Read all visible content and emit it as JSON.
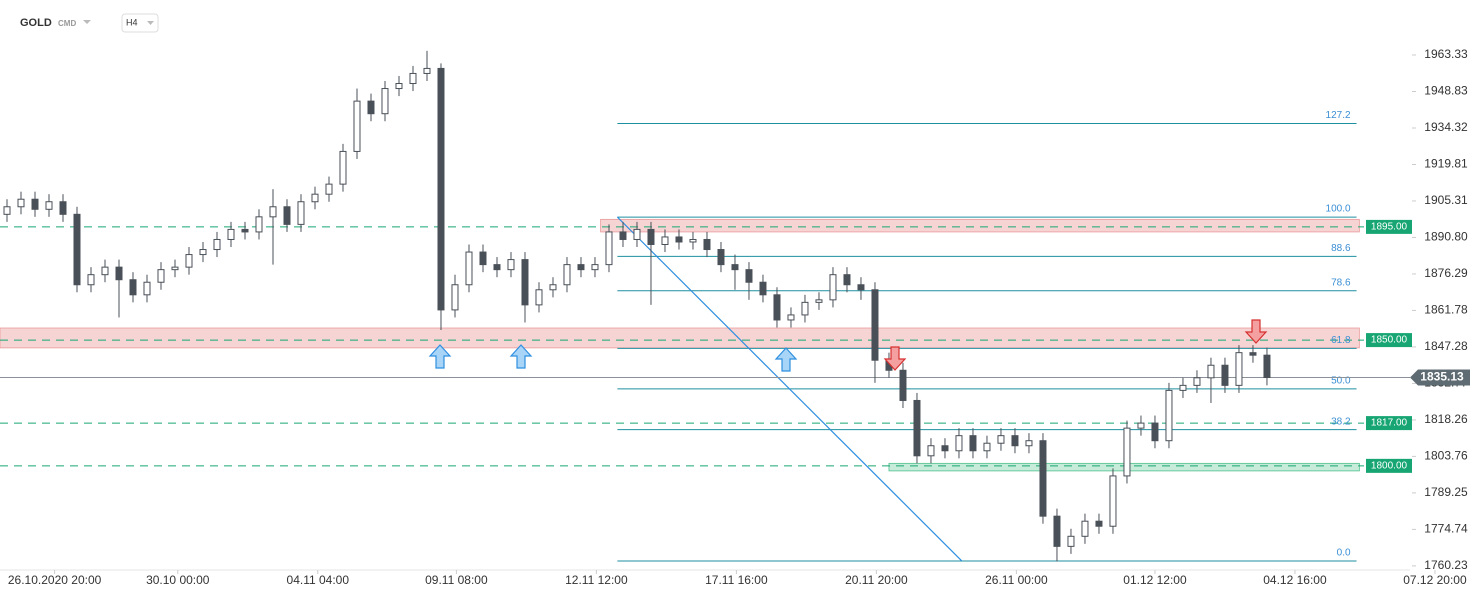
{
  "chart_data": {
    "type": "candlestick",
    "title": "GOLD",
    "subtitle": "CMD",
    "timeframe": "H4",
    "candle_color": "#4a5058",
    "open": [
      1900,
      1903,
      1906,
      1902,
      1905,
      1900,
      1872,
      1876,
      1879,
      1874,
      1868,
      1873,
      1878,
      1879,
      1884,
      1886,
      1890,
      1894,
      1893,
      1899,
      1903,
      1896,
      1905,
      1908,
      1912,
      1925,
      1945,
      1940,
      1950,
      1952,
      1956,
      1958,
      1862,
      1872,
      1885,
      1880,
      1878,
      1882,
      1864,
      1870,
      1872,
      1880,
      1878,
      1880,
      1893,
      1890,
      1894,
      1888,
      1891,
      1889,
      1890,
      1886,
      1880,
      1878,
      1873,
      1868,
      1858,
      1860,
      1865,
      1866,
      1876,
      1872,
      1870,
      1842,
      1838,
      1826,
      1804,
      1808,
      1806,
      1812,
      1806,
      1809,
      1812,
      1808,
      1810,
      1780,
      1768,
      1772,
      1778,
      1776,
      1796,
      1815,
      1817,
      1810,
      1830,
      1832,
      1835,
      1840,
      1832,
      1845,
      1844
    ],
    "high": [
      1906,
      1909,
      1909,
      1908,
      1908,
      1903,
      1879,
      1882,
      1882,
      1877,
      1876,
      1881,
      1882,
      1887,
      1889,
      1893,
      1897,
      1897,
      1902,
      1910,
      1906,
      1908,
      1911,
      1915,
      1928,
      1950,
      1948,
      1953,
      1955,
      1959,
      1965,
      1960,
      1876,
      1888,
      1888,
      1883,
      1885,
      1885,
      1873,
      1875,
      1883,
      1883,
      1883,
      1896,
      1897,
      1897,
      1897,
      1894,
      1894,
      1893,
      1893,
      1889,
      1884,
      1881,
      1876,
      1871,
      1863,
      1868,
      1869,
      1879,
      1879,
      1875,
      1873,
      1845,
      1841,
      1829,
      1811,
      1811,
      1815,
      1815,
      1812,
      1815,
      1815,
      1813,
      1813,
      1783,
      1775,
      1781,
      1781,
      1799,
      1818,
      1820,
      1820,
      1833,
      1835,
      1838,
      1843,
      1843,
      1848,
      1848,
      1847
    ],
    "low": [
      1897,
      1900,
      1899,
      1899,
      1897,
      1869,
      1869,
      1873,
      1859,
      1865,
      1865,
      1870,
      1875,
      1876,
      1881,
      1883,
      1887,
      1890,
      1890,
      1880,
      1893,
      1893,
      1902,
      1905,
      1909,
      1922,
      1937,
      1937,
      1947,
      1949,
      1953,
      1854,
      1859,
      1869,
      1877,
      1875,
      1875,
      1857,
      1861,
      1867,
      1869,
      1875,
      1875,
      1877,
      1887,
      1887,
      1864,
      1885,
      1886,
      1886,
      1883,
      1877,
      1870,
      1866,
      1865,
      1855,
      1855,
      1857,
      1862,
      1863,
      1869,
      1866,
      1833,
      1835,
      1823,
      1801,
      1801,
      1803,
      1803,
      1803,
      1803,
      1806,
      1805,
      1805,
      1777,
      1762,
      1765,
      1769,
      1773,
      1773,
      1793,
      1812,
      1807,
      1807,
      1827,
      1829,
      1825,
      1829,
      1829,
      1841,
      1832
    ],
    "close": [
      1903,
      1906,
      1902,
      1905,
      1900,
      1872,
      1876,
      1879,
      1874,
      1868,
      1873,
      1878,
      1879,
      1884,
      1886,
      1890,
      1894,
      1893,
      1899,
      1903,
      1896,
      1905,
      1908,
      1912,
      1925,
      1945,
      1940,
      1950,
      1952,
      1956,
      1958,
      1862,
      1872,
      1885,
      1880,
      1878,
      1882,
      1864,
      1870,
      1872,
      1880,
      1878,
      1880,
      1893,
      1890,
      1894,
      1888,
      1891,
      1889,
      1890,
      1886,
      1880,
      1878,
      1873,
      1868,
      1858,
      1860,
      1865,
      1866,
      1876,
      1872,
      1870,
      1842,
      1838,
      1826,
      1804,
      1808,
      1806,
      1812,
      1806,
      1809,
      1812,
      1808,
      1810,
      1780,
      1768,
      1772,
      1778,
      1776,
      1796,
      1815,
      1817,
      1810,
      1830,
      1832,
      1835,
      1840,
      1832,
      1845,
      1844,
      1835.13
    ],
    "xlim": [
      -0.5,
      105.36
    ],
    "xticks": [
      {
        "value": 3.4,
        "label": "26.10.2020 20:00"
      },
      {
        "value": 12.2,
        "label": "30.10 00:00"
      },
      {
        "value": 22.2,
        "label": "04.11 04:00"
      },
      {
        "value": 32.1,
        "label": "09.11 08:00"
      },
      {
        "value": 42.1,
        "label": "12.11 12:00"
      },
      {
        "value": 52.1,
        "label": "17.11 16:00"
      },
      {
        "value": 62.1,
        "label": "20.11 20:00"
      },
      {
        "value": 72.1,
        "label": "26.11 00:00"
      },
      {
        "value": 82,
        "label": "01.12 12:00"
      },
      {
        "value": 92,
        "label": "04.12 16:00"
      },
      {
        "value": 102,
        "label": "07.12 20:00"
      }
    ],
    "ylim": [
      1758.6,
      1985.2
    ],
    "yticks": [
      1963.33,
      1948.83,
      1934.32,
      1919.81,
      1905.31,
      {
        "value": 1890.8,
        "label": "1890.80"
      },
      1876.29,
      1861.78,
      1847.28,
      1832.77,
      1818.26,
      1803.76,
      1789.25,
      1774.74,
      1760.23
    ],
    "levels": [
      {
        "value": 1895,
        "label": "1895.00"
      },
      {
        "value": 1850,
        "label": "1850.00"
      },
      {
        "value": 1817,
        "label": "1817.00"
      },
      {
        "value": 1800,
        "label": "1800.00"
      }
    ],
    "level_color": "#17a673",
    "zones": [
      {
        "x": [
          42.4,
          96.6
        ],
        "range": [
          1893,
          1898
        ],
        "color": "#f7d4d4"
      },
      {
        "x": [
          -0.5,
          96.6
        ],
        "range": [
          1846.9,
          1854.8
        ],
        "color": "#f7d4d4"
      },
      {
        "x": [
          63,
          96.6
        ],
        "range": [
          1798,
          1801
        ],
        "color": "#c6ecd9"
      }
    ],
    "fib": {
      "x": [
        43.6,
        96.4
      ],
      "color": "#1e8fa0",
      "levels": [
        {
          "value": 1936.1,
          "label": "127.2"
        },
        {
          "value": 1898.9,
          "label": "100.0"
        },
        {
          "value": 1883.3,
          "label": "88.6"
        },
        {
          "value": 1869.6,
          "label": "78.6"
        },
        {
          "value": 1846.7,
          "label": "61.8"
        },
        {
          "value": 1830.6,
          "label": "50.0"
        },
        {
          "value": 1814.4,
          "label": "38.2"
        },
        {
          "value": 1762.2,
          "label": "0.0"
        }
      ]
    },
    "trendline": {
      "x": [
        43.6,
        68.2
      ],
      "y": [
        1898.9,
        1762.2
      ],
      "color": "#2f8fe0"
    }
  }
}
